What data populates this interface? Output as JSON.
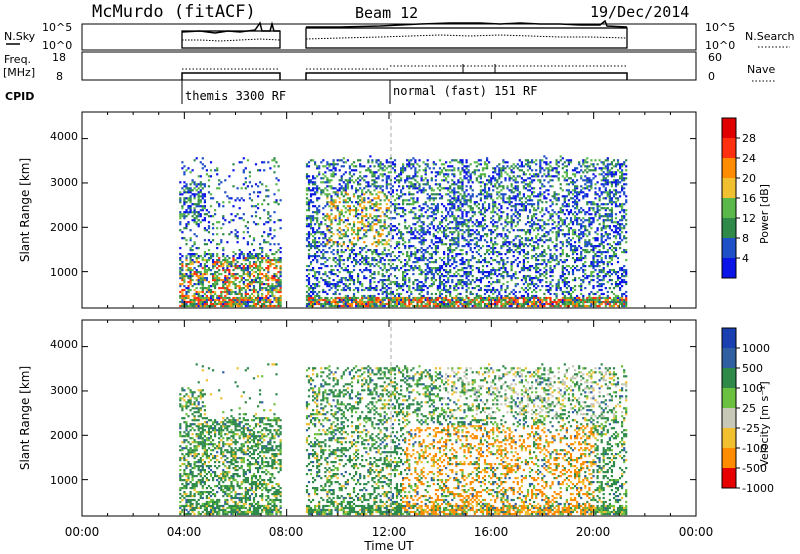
{
  "header": {
    "station": "McMurdo (fitACF)",
    "beam": "Beam 12",
    "date": "19/Dec/2014"
  },
  "nsky_panel": {
    "left_label": "N.Sky",
    "left_ticks": [
      "10^5",
      "10^0"
    ],
    "right_label": "N.Search",
    "right_ticks": [
      "10^5",
      "10^0"
    ]
  },
  "freq_panel": {
    "left_label_line1": "Freq.",
    "left_label_line2": "[MHz]",
    "left_ticks": [
      "18",
      "8"
    ],
    "right_label": "Nave",
    "right_ticks": [
      "60",
      "0"
    ]
  },
  "cpid": {
    "label": "CPID",
    "mode1": "themis 3300 RF",
    "mode2": "normal (fast) 151 RF"
  },
  "chart_data": [
    {
      "type": "heatmap",
      "name": "power",
      "ylabel": "Slant Range [km]",
      "yticks": [
        "1000",
        "2000",
        "3000",
        "4000"
      ],
      "ylim": [
        180,
        4600
      ],
      "colorbar_label": "Power [dB]",
      "colorbar_ticks": [
        "4",
        "8",
        "12",
        "16",
        "20",
        "24",
        "28"
      ],
      "colors": [
        "#0a14e6",
        "#1e50c8",
        "#2f8a4a",
        "#5ab84a",
        "#f0c030",
        "#ff8c00",
        "#ff3010",
        "#e00000"
      ],
      "xlim": [
        0,
        24
      ]
    },
    {
      "type": "heatmap",
      "name": "velocity",
      "ylabel": "Slant Range [km]",
      "yticks": [
        "1000",
        "2000",
        "3000",
        "4000"
      ],
      "ylim": [
        180,
        4600
      ],
      "colorbar_label": "Velocity [m s⁻¹]",
      "colorbar_ticks": [
        "1000",
        "500",
        "100",
        "25",
        "-25",
        "-100",
        "-500",
        "-1000"
      ],
      "colors": [
        "#1a3fb0",
        "#2f5fa0",
        "#2f8a4a",
        "#6cc040",
        "#c8c8b8",
        "#f0c030",
        "#ff8c00",
        "#e60000"
      ],
      "xlim": [
        0,
        24
      ]
    }
  ],
  "time_axis": {
    "label": "Time UT",
    "ticks": [
      "00:00",
      "04:00",
      "08:00",
      "12:00",
      "16:00",
      "20:00",
      "00:00"
    ]
  }
}
